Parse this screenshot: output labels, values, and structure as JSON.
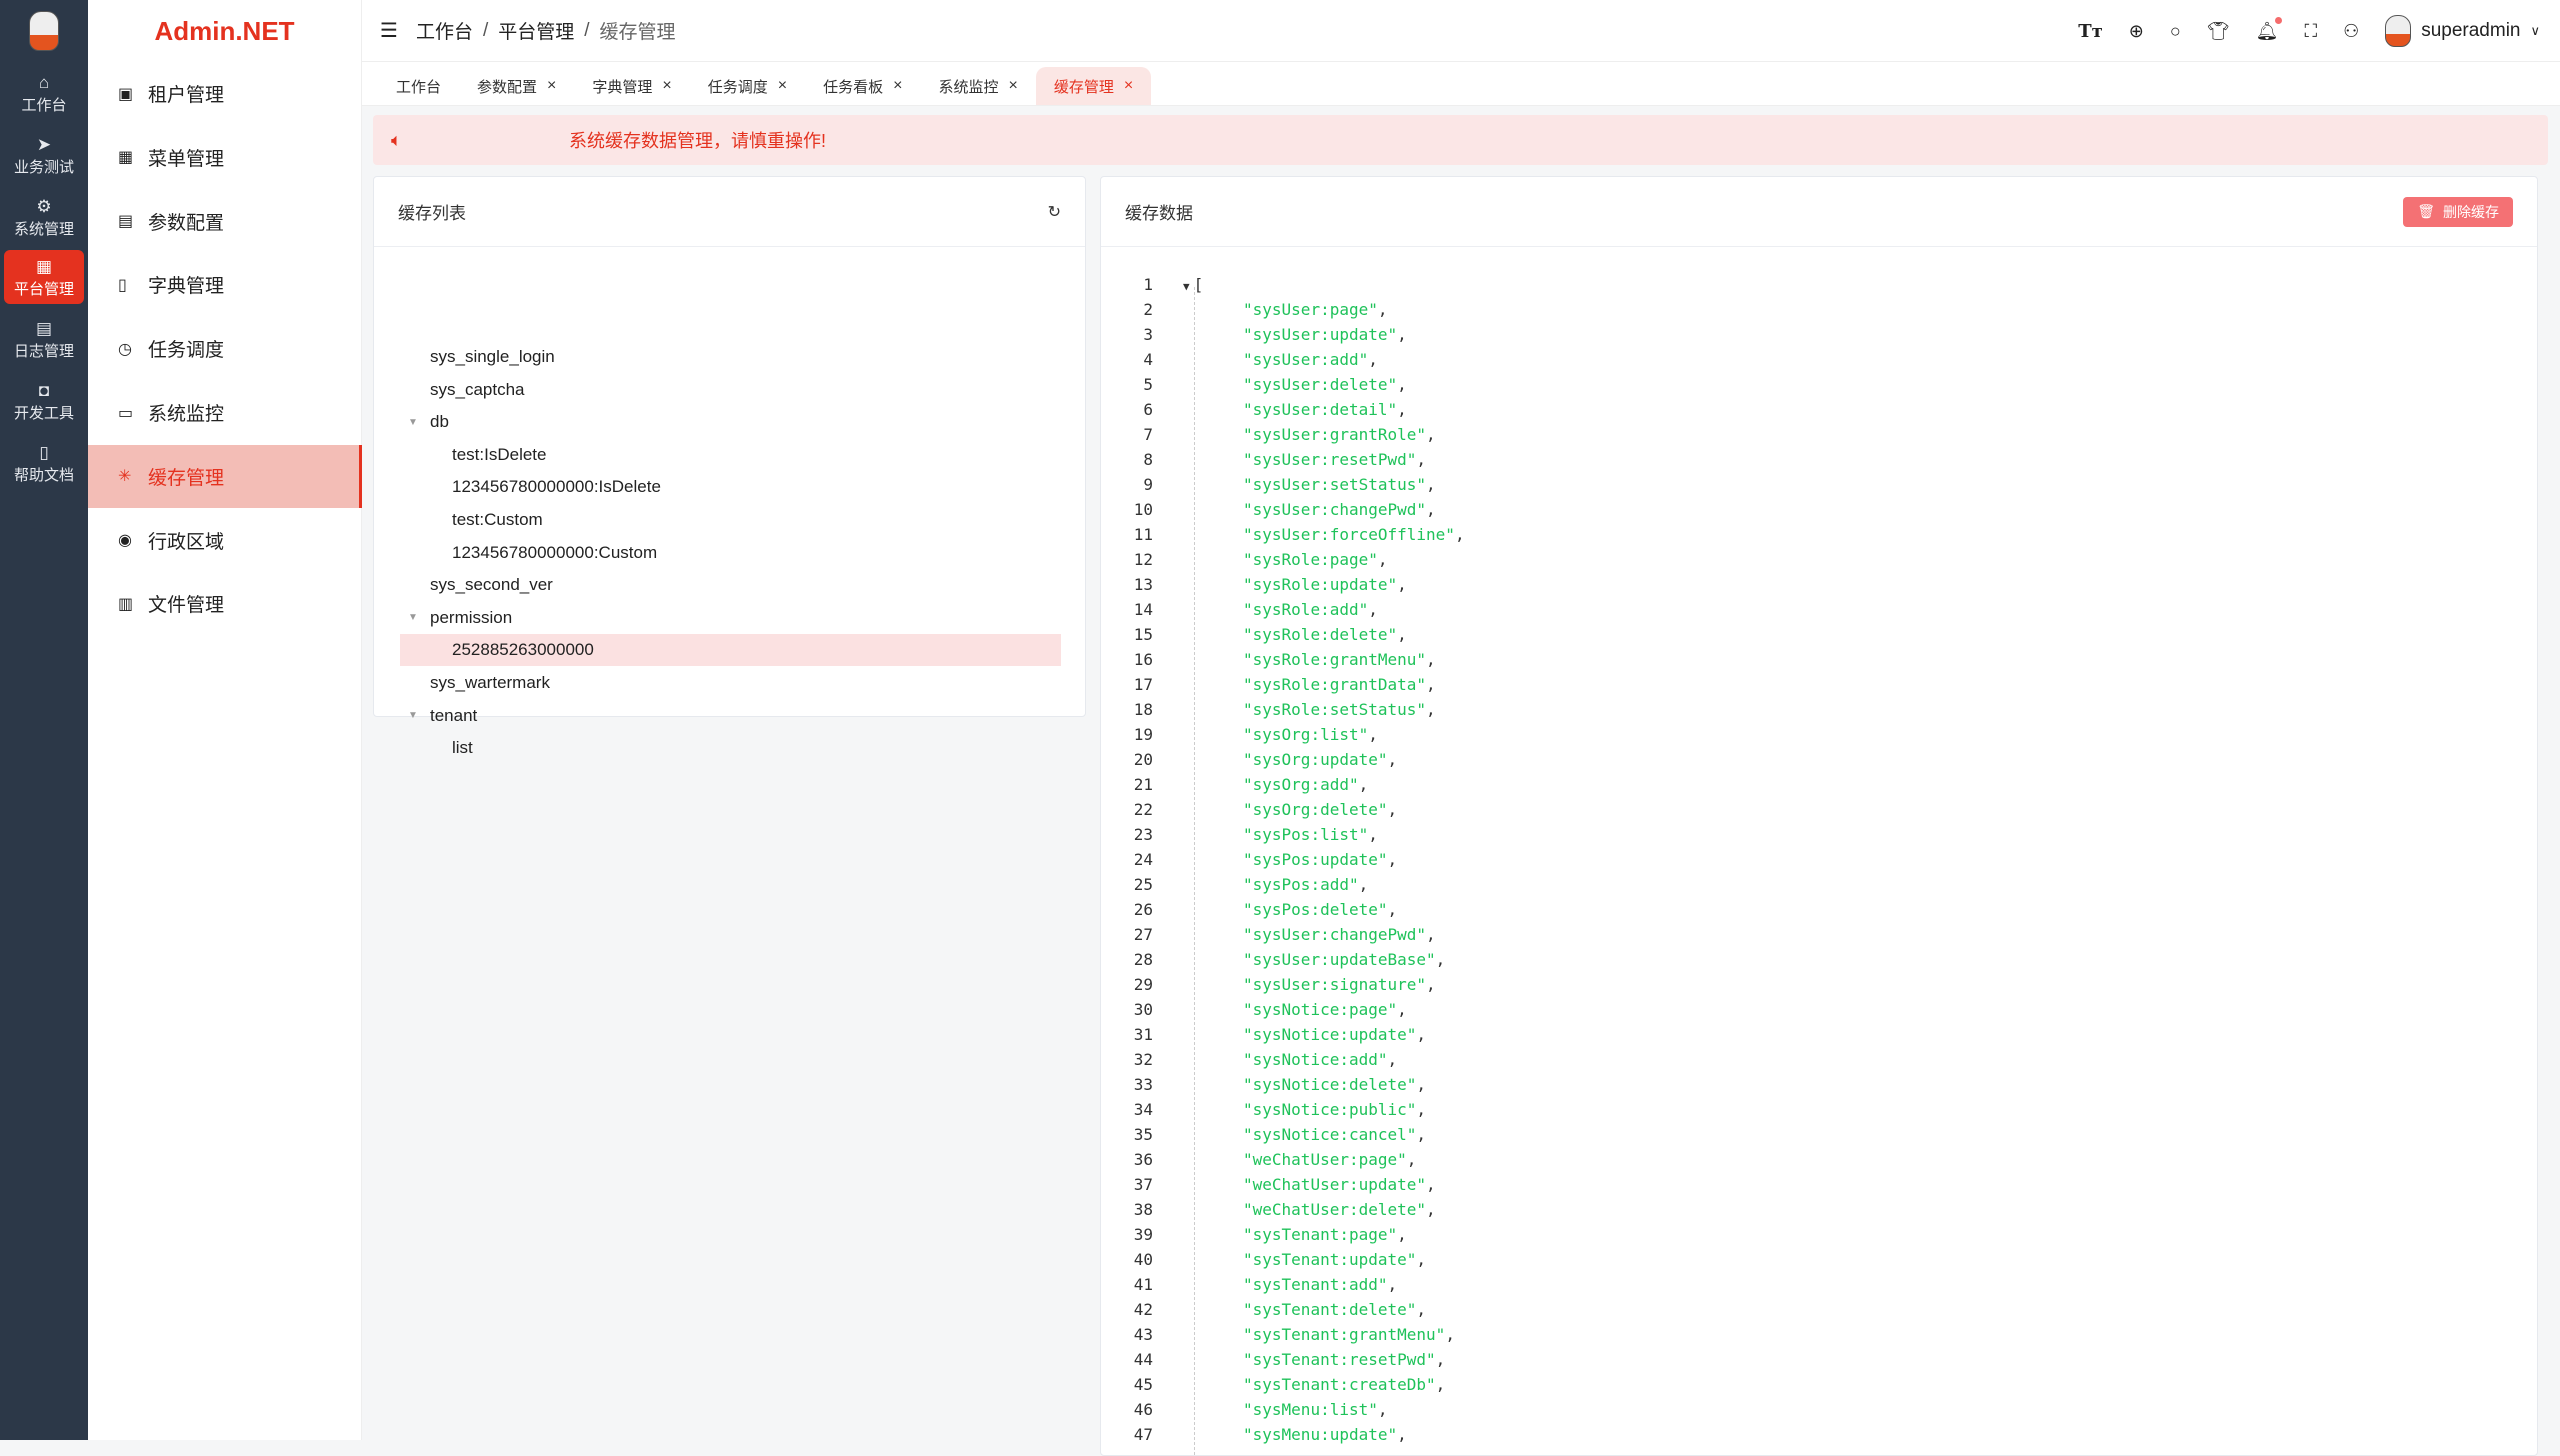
{
  "rail": {
    "items": [
      {
        "label": "工作台",
        "icon": "home-icon",
        "glyph": "⌂"
      },
      {
        "label": "业务测试",
        "icon": "send-icon",
        "glyph": "➤"
      },
      {
        "label": "系统管理",
        "icon": "gear-icon",
        "glyph": "⚙"
      },
      {
        "label": "平台管理",
        "icon": "grid-icon",
        "glyph": "▦",
        "active": true
      },
      {
        "label": "日志管理",
        "icon": "document-icon",
        "glyph": "▤"
      },
      {
        "label": "开发工具",
        "icon": "chip-icon",
        "glyph": "◘"
      },
      {
        "label": "帮助文档",
        "icon": "book-icon",
        "glyph": "▯"
      }
    ]
  },
  "brand": "Admin.NET",
  "menu": {
    "items": [
      {
        "label": "租户管理",
        "icon": "building-icon",
        "glyph": "▣"
      },
      {
        "label": "菜单管理",
        "icon": "grid-icon",
        "glyph": "▦"
      },
      {
        "label": "参数配置",
        "icon": "document-icon",
        "glyph": "▤"
      },
      {
        "label": "字典管理",
        "icon": "book-icon",
        "glyph": "▯"
      },
      {
        "label": "任务调度",
        "icon": "alarm-clock-icon",
        "glyph": "◷"
      },
      {
        "label": "系统监控",
        "icon": "monitor-icon",
        "glyph": "▭"
      },
      {
        "label": "缓存管理",
        "icon": "loading-icon",
        "glyph": "✳",
        "active": true
      },
      {
        "label": "行政区域",
        "icon": "location-icon",
        "glyph": "◉"
      },
      {
        "label": "文件管理",
        "icon": "file-icon",
        "glyph": "▥"
      }
    ]
  },
  "breadcrumb": [
    "工作台",
    "平台管理",
    "缓存管理"
  ],
  "header": {
    "username": "superadmin"
  },
  "tabs": [
    {
      "label": "工作台",
      "closable": false
    },
    {
      "label": "参数配置",
      "closable": true
    },
    {
      "label": "字典管理",
      "closable": true
    },
    {
      "label": "任务调度",
      "closable": true
    },
    {
      "label": "任务看板",
      "closable": true
    },
    {
      "label": "系统监控",
      "closable": true
    },
    {
      "label": "缓存管理",
      "closable": true,
      "active": true
    }
  ],
  "alert": "系统缓存数据管理，请慎重操作!",
  "cache_list": {
    "title": "缓存列表",
    "nodes": [
      {
        "label": "sys_single_login",
        "level": 0
      },
      {
        "label": "sys_captcha",
        "level": 0
      },
      {
        "label": "db",
        "level": 0,
        "expanded": true
      },
      {
        "label": "test:IsDelete",
        "level": 1
      },
      {
        "label": "123456780000000:IsDelete",
        "level": 1
      },
      {
        "label": "test:Custom",
        "level": 1
      },
      {
        "label": "123456780000000:Custom",
        "level": 1
      },
      {
        "label": "sys_second_ver",
        "level": 0
      },
      {
        "label": "permission",
        "level": 0,
        "expanded": true
      },
      {
        "label": "252885263000000",
        "level": 1,
        "selected": true
      },
      {
        "label": "sys_wartermark",
        "level": 0
      },
      {
        "label": "tenant",
        "level": 0,
        "expanded": true
      },
      {
        "label": "list",
        "level": 1
      }
    ]
  },
  "cache_data": {
    "title": "缓存数据",
    "delete_label": "删除缓存",
    "open_bracket": "[",
    "lines": [
      "sysUser:page",
      "sysUser:update",
      "sysUser:add",
      "sysUser:delete",
      "sysUser:detail",
      "sysUser:grantRole",
      "sysUser:resetPwd",
      "sysUser:setStatus",
      "sysUser:changePwd",
      "sysUser:forceOffline",
      "sysRole:page",
      "sysRole:update",
      "sysRole:add",
      "sysRole:delete",
      "sysRole:grantMenu",
      "sysRole:grantData",
      "sysRole:setStatus",
      "sysOrg:list",
      "sysOrg:update",
      "sysOrg:add",
      "sysOrg:delete",
      "sysPos:list",
      "sysPos:update",
      "sysPos:add",
      "sysPos:delete",
      "sysUser:changePwd",
      "sysUser:updateBase",
      "sysUser:signature",
      "sysNotice:page",
      "sysNotice:update",
      "sysNotice:add",
      "sysNotice:delete",
      "sysNotice:public",
      "sysNotice:cancel",
      "weChatUser:page",
      "weChatUser:update",
      "weChatUser:delete",
      "sysTenant:page",
      "sysTenant:update",
      "sysTenant:add",
      "sysTenant:delete",
      "sysTenant:grantMenu",
      "sysTenant:resetPwd",
      "sysTenant:createDb",
      "sysMenu:list",
      "sysMenu:update"
    ]
  },
  "colors": {
    "accent": "#e4321f",
    "rail_bg": "#2c3848",
    "string": "#1fc25a",
    "delete_button": "#f47174"
  }
}
